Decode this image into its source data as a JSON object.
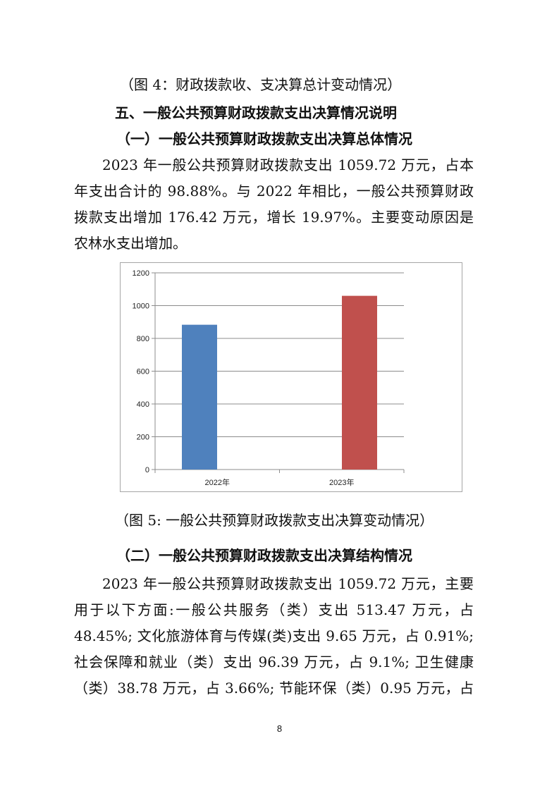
{
  "caption_fig4": "（图 4：财政拨款收、支决算总计变动情况）",
  "section_heading": "五、一般公共预算财政拨款支出决算情况说明",
  "sub1": {
    "heading": "（一）一般公共预算财政拨款支出决算总体情况",
    "lines": [
      "2023 年一般公共预算财政拨款支出 1059.72 万元，占本",
      "年支出合计的 98.88%。与 2022 年相比，一般公共预算财政",
      "拨款支出增加 176.42 万元，增长 19.97%。主要变动原因是",
      "农林水支出增加。"
    ]
  },
  "chart_data": {
    "type": "bar",
    "categories": [
      "2022年",
      "2023年"
    ],
    "values": [
      883.3,
      1059.72
    ],
    "colors": [
      "#4f81bd",
      "#c0504d"
    ],
    "ylim": [
      0,
      1200
    ],
    "yticks": [
      "0",
      "200",
      "400",
      "600",
      "800",
      "1000",
      "1200"
    ],
    "grid": true,
    "legend": "none"
  },
  "caption_fig5": "（图 5:  一般公共预算财政拨款支出决算变动情况）",
  "sub2": {
    "heading": "（二）一般公共预算财政拨款支出决算结构情况",
    "lines": [
      "2023 年一般公共预算财政拨款支出 1059.72 万元，主要",
      "用于以下方面:一般公共服务（类）支出 513.47 万元，占",
      "48.45%; 文化旅游体育与传媒(类)支出 9.65 万元，占 0.91%;",
      "社会保障和就业（类）支出 96.39 万元，占 9.1%;  卫生健康",
      "（类）38.78 万元，占 3.66%;  节能环保（类）0.95 万元，占"
    ]
  },
  "page_number": "8"
}
